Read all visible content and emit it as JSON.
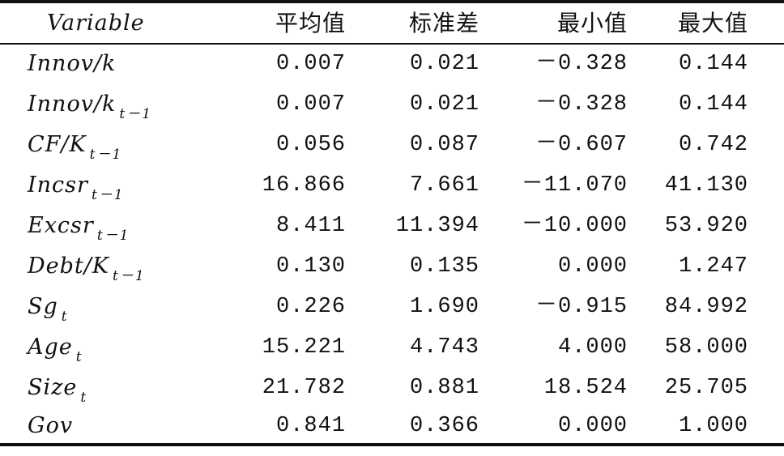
{
  "table": {
    "header": {
      "variable": "Variable",
      "mean": "平均值",
      "std": "标准差",
      "min": "最小值",
      "max": "最大值"
    },
    "rows": [
      {
        "var_main": "Innov/k",
        "var_sub": "",
        "mean": "0.007",
        "std": "0.021",
        "min": "－0.328",
        "max": "0.144"
      },
      {
        "var_main": "Innov/k",
        "var_sub": "t－1",
        "mean": "0.007",
        "std": "0.021",
        "min": "－0.328",
        "max": "0.144"
      },
      {
        "var_main": "CF/K",
        "var_sub": "t－1",
        "mean": "0.056",
        "std": "0.087",
        "min": "－0.607",
        "max": "0.742"
      },
      {
        "var_main": "Incsr",
        "var_sub": "t－1",
        "mean": "16.866",
        "std": "7.661",
        "min": "－11.070",
        "max": "41.130"
      },
      {
        "var_main": "Excsr",
        "var_sub": "t－1",
        "mean": "8.411",
        "std": "11.394",
        "min": "－10.000",
        "max": "53.920"
      },
      {
        "var_main": "Debt/K",
        "var_sub": "t－1",
        "mean": "0.130",
        "std": "0.135",
        "min": "0.000",
        "max": "1.247"
      },
      {
        "var_main": "Sg",
        "var_sub": "t",
        "mean": "0.226",
        "std": "1.690",
        "min": "－0.915",
        "max": "84.992"
      },
      {
        "var_main": "Age",
        "var_sub": "t",
        "mean": "15.221",
        "std": "4.743",
        "min": "4.000",
        "max": "58.000"
      },
      {
        "var_main": "Size",
        "var_sub": "t",
        "mean": "21.782",
        "std": "0.881",
        "min": "18.524",
        "max": "25.705"
      },
      {
        "var_main": "Gov",
        "var_sub": "",
        "mean": "0.841",
        "std": "0.366",
        "min": "0.000",
        "max": "1.000"
      }
    ]
  }
}
